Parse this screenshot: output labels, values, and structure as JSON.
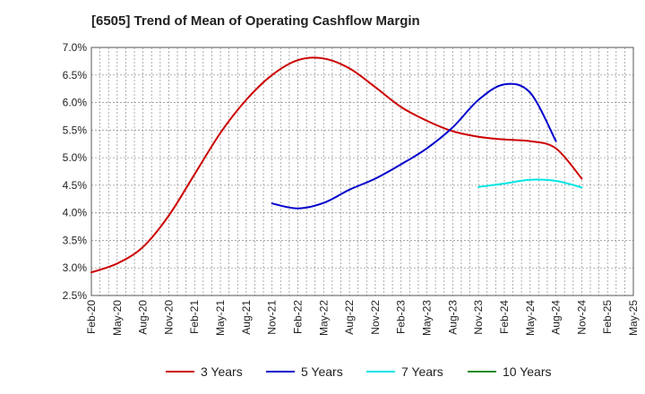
{
  "chart_data": {
    "type": "line",
    "title": "[6505]  Trend of Mean of Operating Cashflow Margin",
    "xlabel": "",
    "ylabel": "",
    "ylim": [
      2.5,
      7.0
    ],
    "y_ticks": [
      2.5,
      3.0,
      3.5,
      4.0,
      4.5,
      5.0,
      5.5,
      6.0,
      6.5,
      7.0
    ],
    "y_tick_labels": [
      "2.5%",
      "3.0%",
      "3.5%",
      "4.0%",
      "4.5%",
      "5.0%",
      "5.5%",
      "6.0%",
      "6.5%",
      "7.0%"
    ],
    "x_tick_labels": [
      "Feb-20",
      "May-20",
      "Aug-20",
      "Nov-20",
      "Feb-21",
      "May-21",
      "Aug-21",
      "Nov-21",
      "Feb-22",
      "May-22",
      "Aug-22",
      "Nov-22",
      "Feb-23",
      "May-23",
      "Aug-23",
      "Nov-23",
      "Feb-24",
      "May-24",
      "Aug-24",
      "Nov-24",
      "Feb-25",
      "May-25"
    ],
    "grid": true,
    "legend_position": "bottom",
    "series": [
      {
        "name": "3 Years",
        "color": "#cc0000",
        "start_index": 0,
        "values": [
          2.92,
          3.08,
          3.38,
          3.95,
          4.7,
          5.45,
          6.05,
          6.5,
          6.77,
          6.8,
          6.62,
          6.28,
          5.92,
          5.67,
          5.48,
          5.38,
          5.33,
          5.3,
          5.17,
          4.62
        ]
      },
      {
        "name": "5 Years",
        "color": "#0000cc",
        "start_index": 7,
        "values": [
          4.17,
          4.08,
          4.18,
          4.42,
          4.62,
          4.88,
          5.17,
          5.55,
          6.05,
          6.33,
          6.18,
          5.3
        ]
      },
      {
        "name": "7 Years",
        "color": "#00e5e5",
        "start_index": 15,
        "values": [
          4.47,
          4.53,
          4.6,
          4.58,
          4.46
        ]
      },
      {
        "name": "10 Years",
        "color": "#228b22",
        "start_index": 0,
        "values": []
      }
    ]
  }
}
